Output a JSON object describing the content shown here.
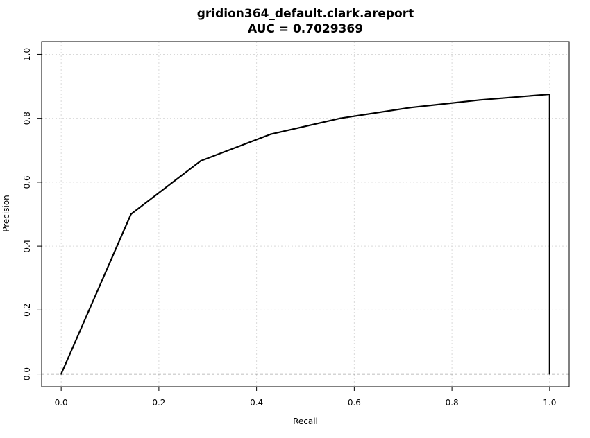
{
  "chart_data": {
    "type": "line",
    "title": "gridion364_default.clark.areport",
    "subtitle": "AUC = 0.7029369",
    "xlabel": "Recall",
    "ylabel": "Precision",
    "xlim": [
      -0.04,
      1.04
    ],
    "ylim": [
      -0.04,
      1.04
    ],
    "xticks": [
      0.0,
      0.2,
      0.4,
      0.6,
      0.8,
      1.0
    ],
    "yticks": [
      0.0,
      0.2,
      0.4,
      0.6,
      0.8,
      1.0
    ],
    "xtick_labels": [
      "0.0",
      "0.2",
      "0.4",
      "0.6",
      "0.8",
      "1.0"
    ],
    "ytick_labels": [
      "0.0",
      "0.2",
      "0.4",
      "0.6",
      "0.8",
      "1.0"
    ],
    "grid": true,
    "baseline_y": 0.0,
    "series": [
      {
        "x": [
          0.0,
          0.1429,
          0.2857,
          0.4286,
          0.5714,
          0.7143,
          0.8571,
          1.0,
          1.0
        ],
        "y": [
          0.0,
          0.5,
          0.6667,
          0.75,
          0.8,
          0.8333,
          0.8571,
          0.875,
          0.0
        ],
        "color": "#000000"
      }
    ]
  }
}
